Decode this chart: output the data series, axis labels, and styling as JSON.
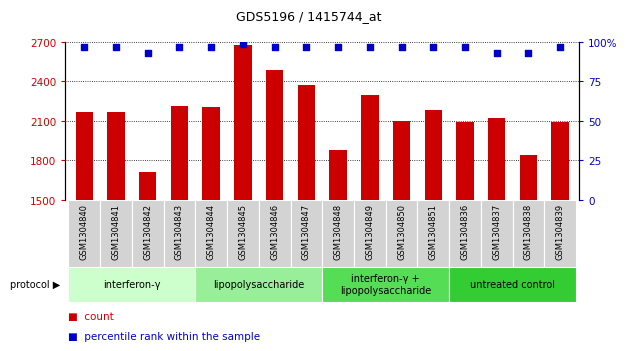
{
  "title": "GDS5196 / 1415744_at",
  "samples": [
    "GSM1304840",
    "GSM1304841",
    "GSM1304842",
    "GSM1304843",
    "GSM1304844",
    "GSM1304845",
    "GSM1304846",
    "GSM1304847",
    "GSM1304848",
    "GSM1304849",
    "GSM1304850",
    "GSM1304851",
    "GSM1304836",
    "GSM1304837",
    "GSM1304838",
    "GSM1304839"
  ],
  "counts": [
    2165,
    2170,
    1715,
    2215,
    2205,
    2680,
    2490,
    2370,
    1880,
    2300,
    2100,
    2185,
    2095,
    2120,
    1840,
    2095
  ],
  "percentile_ranks": [
    97,
    97,
    93,
    97,
    97,
    99,
    97,
    97,
    97,
    97,
    97,
    97,
    97,
    93,
    93,
    97
  ],
  "bar_color": "#cc0000",
  "dot_color": "#0000cc",
  "ylim_left": [
    1500,
    2700
  ],
  "ylim_right": [
    0,
    100
  ],
  "yticks_left": [
    1500,
    1800,
    2100,
    2400,
    2700
  ],
  "yticks_right": [
    0,
    25,
    50,
    75,
    100
  ],
  "ytick_labels_right": [
    "0",
    "25",
    "50",
    "75",
    "100%"
  ],
  "groups": [
    {
      "label": "interferon-γ",
      "start": 0,
      "end": 4,
      "color": "#ccffcc"
    },
    {
      "label": "lipopolysaccharide",
      "start": 4,
      "end": 8,
      "color": "#99ee99"
    },
    {
      "label": "interferon-γ +\nlipopolysaccharide",
      "start": 8,
      "end": 12,
      "color": "#55dd55"
    },
    {
      "label": "untreated control",
      "start": 12,
      "end": 16,
      "color": "#33cc33"
    }
  ],
  "protocol_label": "protocol",
  "legend_count_label": "count",
  "legend_percentile_label": "percentile rank within the sample",
  "background_color": "#ffffff"
}
